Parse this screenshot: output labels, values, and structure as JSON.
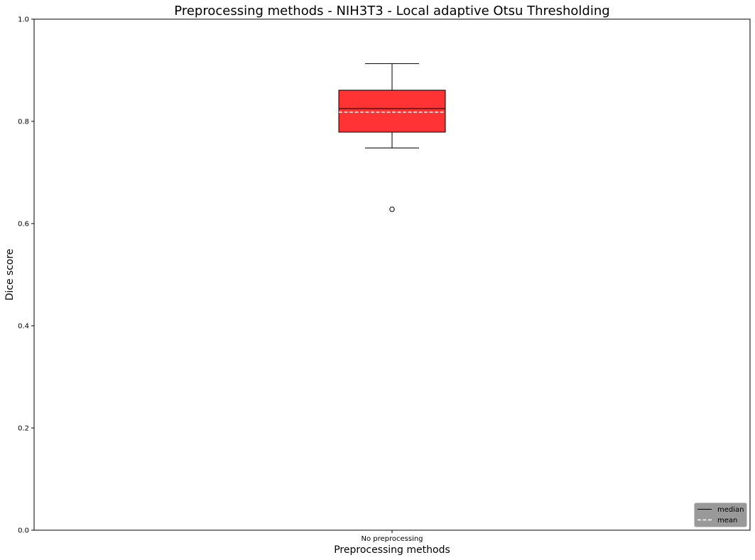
{
  "chart_data": {
    "type": "box",
    "title": "Preprocessing methods - NIH3T3 - Local adaptive Otsu Thresholding",
    "xlabel": "Preprocessing methods",
    "ylabel": "Dice score",
    "ylim": [
      0,
      1
    ],
    "yticks": [
      "0.0",
      "0.2",
      "0.4",
      "0.6",
      "0.8",
      "1.0"
    ],
    "categories": [
      "No preprocessing"
    ],
    "boxes": [
      {
        "category": "No preprocessing",
        "whisker_low": 0.748,
        "q1": 0.779,
        "median": 0.825,
        "mean": 0.818,
        "q3": 0.861,
        "whisker_high": 0.913,
        "outliers": [
          0.628
        ]
      }
    ],
    "colors": {
      "box_fill": "#ff3333",
      "median_line": "#000000",
      "mean_line": "#ffffff",
      "legend_bg": "#999999"
    },
    "grid": false,
    "legend": {
      "placement": "bottom-right",
      "entries": [
        "median",
        "mean"
      ]
    }
  }
}
